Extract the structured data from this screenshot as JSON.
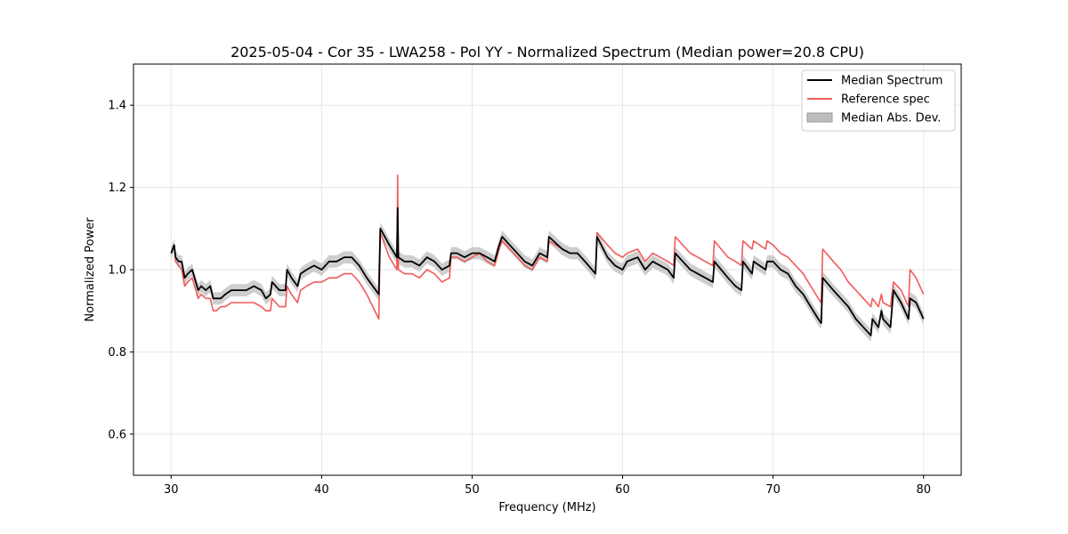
{
  "chart_data": {
    "type": "line",
    "title": "2025-05-04 - Cor 35 - LWA258 - Pol YY - Normalized Spectrum (Median power=20.8 CPU)",
    "xlabel": "Frequency (MHz)",
    "ylabel": "Normalized Power",
    "xlim": [
      27.5,
      82.5
    ],
    "ylim": [
      0.5,
      1.5
    ],
    "xticks": [
      30,
      40,
      50,
      60,
      70,
      80
    ],
    "yticks": [
      0.6,
      0.8,
      1.0,
      1.2,
      1.4
    ],
    "xtick_labels": [
      "30",
      "40",
      "50",
      "60",
      "70",
      "80"
    ],
    "ytick_labels": [
      "0.6",
      "0.8",
      "1.0",
      "1.2",
      "1.4"
    ],
    "grid": true,
    "legend_position": "top-right",
    "series": [
      {
        "name": "Median Spectrum",
        "color": "#000000",
        "x": [
          30.0,
          30.2,
          30.3,
          30.5,
          30.7,
          30.9,
          31.1,
          31.4,
          31.8,
          32.0,
          32.3,
          32.6,
          32.8,
          33.0,
          33.3,
          33.6,
          34.0,
          34.5,
          35.0,
          35.5,
          36.0,
          36.3,
          36.6,
          36.7,
          37.2,
          37.6,
          37.7,
          38.0,
          38.4,
          38.6,
          39.0,
          39.5,
          40.0,
          40.5,
          41.0,
          41.5,
          42.0,
          42.5,
          43.0,
          43.8,
          43.9,
          44.5,
          45.0,
          45.05,
          45.1,
          45.5,
          46.0,
          46.5,
          47.0,
          47.5,
          48.0,
          48.5,
          48.6,
          49.0,
          49.5,
          50.0,
          50.5,
          51.0,
          51.5,
          51.8,
          52.0,
          52.5,
          53.0,
          53.5,
          54.0,
          54.5,
          55.0,
          55.1,
          56.0,
          56.5,
          57.0,
          57.5,
          58.2,
          58.3,
          59.0,
          59.5,
          60.0,
          60.3,
          61.0,
          61.5,
          62.0,
          62.5,
          63.0,
          63.4,
          63.5,
          64.0,
          64.5,
          65.0,
          65.5,
          66.0,
          66.1,
          67.0,
          67.5,
          67.9,
          68.0,
          68.6,
          68.7,
          69.5,
          69.6,
          70.0,
          70.5,
          71.0,
          71.5,
          72.0,
          72.5,
          73.0,
          73.2,
          73.3,
          74.0,
          74.5,
          75.0,
          75.5,
          76.0,
          76.5,
          76.6,
          77.0,
          77.2,
          77.3,
          77.8,
          78.0,
          78.5,
          79.0,
          79.1,
          79.5,
          80.0
        ],
        "values": [
          1.04,
          1.06,
          1.03,
          1.02,
          1.02,
          0.98,
          0.99,
          1.0,
          0.95,
          0.96,
          0.95,
          0.96,
          0.93,
          0.93,
          0.93,
          0.94,
          0.95,
          0.95,
          0.95,
          0.96,
          0.95,
          0.93,
          0.94,
          0.97,
          0.95,
          0.95,
          1.0,
          0.98,
          0.96,
          0.99,
          1.0,
          1.01,
          1.0,
          1.02,
          1.02,
          1.03,
          1.03,
          1.01,
          0.98,
          0.94,
          1.1,
          1.06,
          1.03,
          1.15,
          1.03,
          1.02,
          1.02,
          1.01,
          1.03,
          1.02,
          1.0,
          1.01,
          1.04,
          1.04,
          1.03,
          1.04,
          1.04,
          1.03,
          1.02,
          1.06,
          1.08,
          1.06,
          1.04,
          1.02,
          1.01,
          1.04,
          1.03,
          1.08,
          1.05,
          1.04,
          1.04,
          1.02,
          0.99,
          1.08,
          1.03,
          1.01,
          1.0,
          1.02,
          1.03,
          1.0,
          1.02,
          1.01,
          1.0,
          0.98,
          1.04,
          1.02,
          1.0,
          0.99,
          0.98,
          0.97,
          1.02,
          0.98,
          0.96,
          0.95,
          1.02,
          0.99,
          1.02,
          1.0,
          1.02,
          1.02,
          1.0,
          0.99,
          0.96,
          0.94,
          0.91,
          0.88,
          0.87,
          0.98,
          0.95,
          0.93,
          0.91,
          0.88,
          0.86,
          0.84,
          0.88,
          0.86,
          0.9,
          0.88,
          0.86,
          0.95,
          0.92,
          0.88,
          0.93,
          0.92,
          0.88
        ]
      },
      {
        "name": "Reference spec",
        "color": "#f15a5a",
        "x": [
          30.0,
          30.2,
          30.3,
          30.5,
          30.7,
          30.9,
          31.1,
          31.4,
          31.8,
          32.0,
          32.3,
          32.6,
          32.8,
          33.0,
          33.3,
          33.6,
          34.0,
          34.5,
          35.0,
          35.5,
          36.0,
          36.3,
          36.6,
          36.7,
          37.2,
          37.6,
          37.7,
          38.0,
          38.4,
          38.6,
          39.0,
          39.5,
          40.0,
          40.5,
          41.0,
          41.5,
          42.0,
          42.5,
          43.0,
          43.8,
          43.9,
          44.5,
          45.0,
          45.05,
          45.1,
          45.5,
          46.0,
          46.5,
          47.0,
          47.5,
          48.0,
          48.5,
          48.6,
          49.0,
          49.5,
          50.0,
          50.5,
          51.0,
          51.5,
          51.8,
          52.0,
          52.5,
          53.0,
          53.5,
          54.0,
          54.5,
          55.0,
          55.1,
          56.0,
          56.5,
          57.0,
          57.5,
          58.2,
          58.3,
          59.0,
          59.5,
          60.0,
          60.3,
          61.0,
          61.5,
          62.0,
          62.5,
          63.0,
          63.4,
          63.5,
          64.0,
          64.5,
          65.0,
          65.5,
          66.0,
          66.1,
          67.0,
          67.5,
          67.9,
          68.0,
          68.6,
          68.7,
          69.5,
          69.6,
          70.0,
          70.5,
          71.0,
          71.5,
          72.0,
          72.5,
          73.0,
          73.2,
          73.3,
          74.0,
          74.5,
          75.0,
          75.5,
          76.0,
          76.5,
          76.6,
          77.0,
          77.2,
          77.3,
          77.8,
          78.0,
          78.5,
          79.0,
          79.1,
          79.5,
          80.0
        ],
        "values": [
          1.04,
          1.06,
          1.02,
          1.01,
          1.0,
          0.96,
          0.97,
          0.98,
          0.93,
          0.94,
          0.93,
          0.93,
          0.9,
          0.9,
          0.91,
          0.91,
          0.92,
          0.92,
          0.92,
          0.92,
          0.91,
          0.9,
          0.9,
          0.93,
          0.91,
          0.91,
          0.96,
          0.94,
          0.92,
          0.95,
          0.96,
          0.97,
          0.97,
          0.98,
          0.98,
          0.99,
          0.99,
          0.97,
          0.94,
          0.88,
          1.09,
          1.03,
          1.0,
          1.23,
          1.0,
          0.99,
          0.99,
          0.98,
          1.0,
          0.99,
          0.97,
          0.98,
          1.03,
          1.03,
          1.02,
          1.03,
          1.04,
          1.02,
          1.01,
          1.05,
          1.07,
          1.05,
          1.03,
          1.01,
          1.0,
          1.03,
          1.02,
          1.07,
          1.05,
          1.04,
          1.04,
          1.02,
          0.99,
          1.09,
          1.06,
          1.04,
          1.03,
          1.04,
          1.05,
          1.02,
          1.04,
          1.03,
          1.02,
          1.01,
          1.08,
          1.06,
          1.04,
          1.03,
          1.02,
          1.01,
          1.07,
          1.03,
          1.02,
          1.01,
          1.07,
          1.05,
          1.07,
          1.05,
          1.07,
          1.06,
          1.04,
          1.03,
          1.01,
          0.99,
          0.96,
          0.93,
          0.92,
          1.05,
          1.02,
          1.0,
          0.97,
          0.95,
          0.93,
          0.91,
          0.93,
          0.91,
          0.94,
          0.92,
          0.91,
          0.97,
          0.95,
          0.91,
          1.0,
          0.98,
          0.94
        ]
      }
    ],
    "band": {
      "name": "Median Abs. Dev.",
      "color": "#bdbdbd",
      "half_width": 0.015
    }
  }
}
